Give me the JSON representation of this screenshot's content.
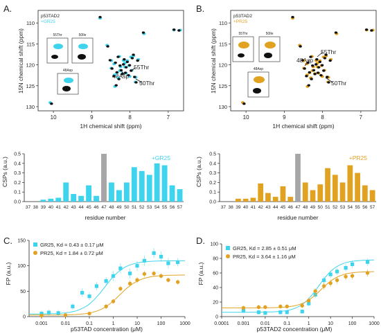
{
  "panels": {
    "A": "A.",
    "B": "B.",
    "C": "C.",
    "D": "D."
  },
  "colors": {
    "gr25": "#3fd4ee",
    "pr25": "#e2a221",
    "ref": "#111111",
    "gray": "#a6a6a6"
  },
  "chart_data": [
    {
      "id": "nmr_gr25",
      "type": "scatter",
      "legend": [
        "p53TAD2",
        "+GR25"
      ],
      "xlabel": "1H chemical shift (ppm)",
      "ylabel": "15N chemical shift (ppm)",
      "x_ticks": [
        "10",
        "9",
        "8",
        "7"
      ],
      "y_ticks": [
        "110",
        "115",
        "120",
        "125",
        "130"
      ],
      "xlim": [
        10.4,
        6.6
      ],
      "ylim": [
        107,
        131
      ],
      "annotations": [
        "48Asp",
        "55Thr",
        "50Thr"
      ],
      "insets": [
        "55Thr",
        "50Ile",
        "48Asp"
      ],
      "peaks": [
        {
          "h": 10.05,
          "n": 129.3
        },
        {
          "h": 8.78,
          "n": 108.6
        },
        {
          "h": 8.52,
          "n": 118.9
        },
        {
          "h": 8.47,
          "n": 120.9
        },
        {
          "h": 8.42,
          "n": 122.7
        },
        {
          "h": 8.38,
          "n": 119.5
        },
        {
          "h": 8.34,
          "n": 121.8
        },
        {
          "h": 8.31,
          "n": 118.1
        },
        {
          "h": 8.29,
          "n": 123.4
        },
        {
          "h": 8.26,
          "n": 120.2
        },
        {
          "h": 8.23,
          "n": 121.3
        },
        {
          "h": 8.2,
          "n": 122.2
        },
        {
          "h": 8.17,
          "n": 119.9
        },
        {
          "h": 8.15,
          "n": 118.7
        },
        {
          "h": 8.12,
          "n": 121.9
        },
        {
          "h": 8.1,
          "n": 120.6
        },
        {
          "h": 8.07,
          "n": 119.3
        },
        {
          "h": 8.04,
          "n": 122.5
        },
        {
          "h": 8.01,
          "n": 120.1
        },
        {
          "h": 7.97,
          "n": 121.4
        },
        {
          "h": 7.94,
          "n": 118.4
        },
        {
          "h": 7.91,
          "n": 117.6
        },
        {
          "h": 7.88,
          "n": 122.9
        },
        {
          "h": 7.84,
          "n": 124.2
        },
        {
          "h": 7.8,
          "n": 119.0
        },
        {
          "h": 8.36,
          "n": 124.9
        },
        {
          "h": 6.85,
          "n": 111.6
        },
        {
          "h": 6.72,
          "n": 111.8
        },
        {
          "h": 8.58,
          "n": 115.6
        },
        {
          "h": 7.65,
          "n": 112.3
        }
      ]
    },
    {
      "id": "nmr_pr25",
      "type": "scatter",
      "legend": [
        "p53TAD2",
        "+PR25"
      ],
      "xlabel": "1H chemical shift (ppm)",
      "ylabel": "15N chemical shift (ppm)",
      "x_ticks": [
        "10",
        "9",
        "8",
        "7"
      ],
      "y_ticks": [
        "110",
        "115",
        "120",
        "125",
        "130"
      ],
      "xlim": [
        10.4,
        6.6
      ],
      "ylim": [
        107,
        131
      ],
      "annotations": [
        "48Asp",
        "55Thr",
        "50Thr"
      ],
      "insets": [
        "55Thr",
        "50Ile",
        "48Asp"
      ],
      "peaks": [
        {
          "h": 10.05,
          "n": 129.3
        },
        {
          "h": 8.78,
          "n": 108.6
        },
        {
          "h": 8.52,
          "n": 118.9
        },
        {
          "h": 8.47,
          "n": 120.9
        },
        {
          "h": 8.42,
          "n": 122.7
        },
        {
          "h": 8.38,
          "n": 119.5
        },
        {
          "h": 8.34,
          "n": 121.8
        },
        {
          "h": 8.31,
          "n": 118.1
        },
        {
          "h": 8.29,
          "n": 123.4
        },
        {
          "h": 8.26,
          "n": 120.2
        },
        {
          "h": 8.23,
          "n": 121.3
        },
        {
          "h": 8.2,
          "n": 122.2
        },
        {
          "h": 8.17,
          "n": 119.9
        },
        {
          "h": 8.15,
          "n": 118.7
        },
        {
          "h": 8.12,
          "n": 121.9
        },
        {
          "h": 8.1,
          "n": 120.6
        },
        {
          "h": 8.07,
          "n": 119.3
        },
        {
          "h": 8.04,
          "n": 122.5
        },
        {
          "h": 8.01,
          "n": 120.1
        },
        {
          "h": 7.97,
          "n": 121.4
        },
        {
          "h": 7.94,
          "n": 118.4
        },
        {
          "h": 7.91,
          "n": 117.6
        },
        {
          "h": 7.88,
          "n": 122.9
        },
        {
          "h": 7.84,
          "n": 124.2
        },
        {
          "h": 7.8,
          "n": 119.0
        },
        {
          "h": 8.36,
          "n": 124.9
        },
        {
          "h": 6.85,
          "n": 111.6
        },
        {
          "h": 6.72,
          "n": 111.8
        },
        {
          "h": 8.58,
          "n": 115.6
        },
        {
          "h": 7.65,
          "n": 112.3
        }
      ]
    },
    {
      "id": "csp_gr25",
      "type": "bar",
      "legend": "+GR25",
      "xlabel": "residue number",
      "ylabel": "CSPs (a.u.)",
      "ylim": [
        0,
        0.5
      ],
      "y_ticks": [
        "0.0",
        "0.1",
        "0.2",
        "0.3",
        "0.4",
        "0.5"
      ],
      "categories": [
        "37",
        "38",
        "39",
        "40",
        "41",
        "42",
        "43",
        "44",
        "45",
        "46",
        "47",
        "48",
        "49",
        "50",
        "51",
        "52",
        "53",
        "54",
        "55",
        "56",
        "57"
      ],
      "values": [
        0,
        0,
        0.02,
        0.03,
        0.04,
        0.2,
        0.08,
        0.06,
        0.17,
        0.06,
        0.5,
        0.2,
        0.12,
        0.2,
        0.36,
        0.32,
        0.28,
        0.4,
        0.38,
        0.17,
        0.13
      ],
      "reference_bar": "47"
    },
    {
      "id": "csp_pr25",
      "type": "bar",
      "legend": "+PR25",
      "xlabel": "residue number",
      "ylabel": "CSPs (a.u.)",
      "ylim": [
        0,
        0.5
      ],
      "y_ticks": [
        "0.0",
        "0.1",
        "0.2",
        "0.3",
        "0.4",
        "0.5"
      ],
      "categories": [
        "37",
        "38",
        "39",
        "40",
        "41",
        "42",
        "43",
        "44",
        "45",
        "46",
        "47",
        "48",
        "49",
        "50",
        "51",
        "52",
        "53",
        "54",
        "55",
        "56",
        "57"
      ],
      "values": [
        0,
        0,
        0.03,
        0.03,
        0.04,
        0.19,
        0.09,
        0.05,
        0.16,
        0.05,
        0.5,
        0.2,
        0.12,
        0.18,
        0.35,
        0.28,
        0.2,
        0.38,
        0.3,
        0.17,
        0.12
      ],
      "reference_bar": "47"
    },
    {
      "id": "fp_c",
      "type": "scatter",
      "xlabel": "p53TAD concentration (μM)",
      "ylabel": "FP (a.u.)",
      "xscale": "log",
      "xlim": [
        0.0003,
        1000
      ],
      "ylim": [
        0,
        150
      ],
      "x_ticks": [
        "0.001",
        "0.01",
        "0.1",
        "1",
        "10",
        "100",
        "1000"
      ],
      "y_ticks": [
        "0",
        "50",
        "100",
        "150"
      ],
      "series": [
        {
          "name": "GR25, Kd = 0.43 ± 0.17 μM",
          "color": "#3fd4ee",
          "marker": "square",
          "x": [
            0.001,
            0.002,
            0.005,
            0.02,
            0.05,
            0.1,
            0.2,
            0.5,
            1,
            2,
            5,
            10,
            20,
            50,
            100,
            200,
            500
          ],
          "y": [
            6,
            8,
            7,
            20,
            47,
            40,
            60,
            70,
            80,
            95,
            85,
            100,
            110,
            125,
            118,
            105,
            107
          ],
          "err": [
            6,
            6,
            6,
            6,
            8,
            8,
            8,
            8,
            10,
            10,
            10,
            10,
            10,
            10,
            10,
            10,
            8
          ]
        },
        {
          "name": "PR25, Kd = 1.84 ± 0.72 μM",
          "color": "#e2a221",
          "marker": "circle",
          "x": [
            0.001,
            0.01,
            0.1,
            0.5,
            1,
            2,
            5,
            10,
            20,
            50,
            100,
            200,
            500
          ],
          "y": [
            2,
            3,
            6,
            20,
            30,
            55,
            65,
            72,
            84,
            85,
            80,
            72,
            68
          ],
          "err": [
            3,
            3,
            3,
            5,
            5,
            6,
            6,
            6,
            6,
            6,
            5,
            5,
            5
          ]
        }
      ]
    },
    {
      "id": "fp_d",
      "type": "scatter",
      "xlabel": "p53TAD2 concentration (μM)",
      "ylabel": "FP (a.u.)",
      "xscale": "log",
      "xlim": [
        0.0001,
        1000
      ],
      "ylim": [
        0,
        100
      ],
      "x_ticks": [
        "0.0001",
        "0.001",
        "0.01",
        "0.1",
        "1",
        "10",
        "100",
        "1000"
      ],
      "y_ticks": [
        "0",
        "20",
        "40",
        "60",
        "80",
        "100"
      ],
      "series": [
        {
          "name": "GR25, Kd = 2.85 ± 0.51 μM",
          "color": "#3fd4ee",
          "marker": "square",
          "x": [
            0.001,
            0.005,
            0.01,
            0.05,
            0.1,
            0.5,
            1,
            2,
            5,
            10,
            20,
            50,
            100,
            500
          ],
          "y": [
            8,
            6,
            5,
            6,
            6,
            7,
            18,
            30,
            50,
            58,
            62,
            67,
            72,
            75
          ],
          "err": [
            3,
            3,
            3,
            3,
            3,
            3,
            4,
            4,
            5,
            5,
            5,
            5,
            5,
            5
          ]
        },
        {
          "name": "PR25, Kd = 3.64 ± 1.16 μM",
          "color": "#e2a221",
          "marker": "circle",
          "x": [
            0.001,
            0.005,
            0.01,
            0.05,
            0.1,
            0.5,
            1,
            2,
            5,
            10,
            20,
            50,
            100,
            500
          ],
          "y": [
            12,
            13,
            13,
            14,
            14,
            15,
            22,
            35,
            42,
            46,
            50,
            55,
            56,
            60
          ],
          "err": [
            3,
            3,
            3,
            3,
            3,
            3,
            4,
            4,
            5,
            5,
            5,
            5,
            5,
            5
          ]
        }
      ]
    }
  ]
}
